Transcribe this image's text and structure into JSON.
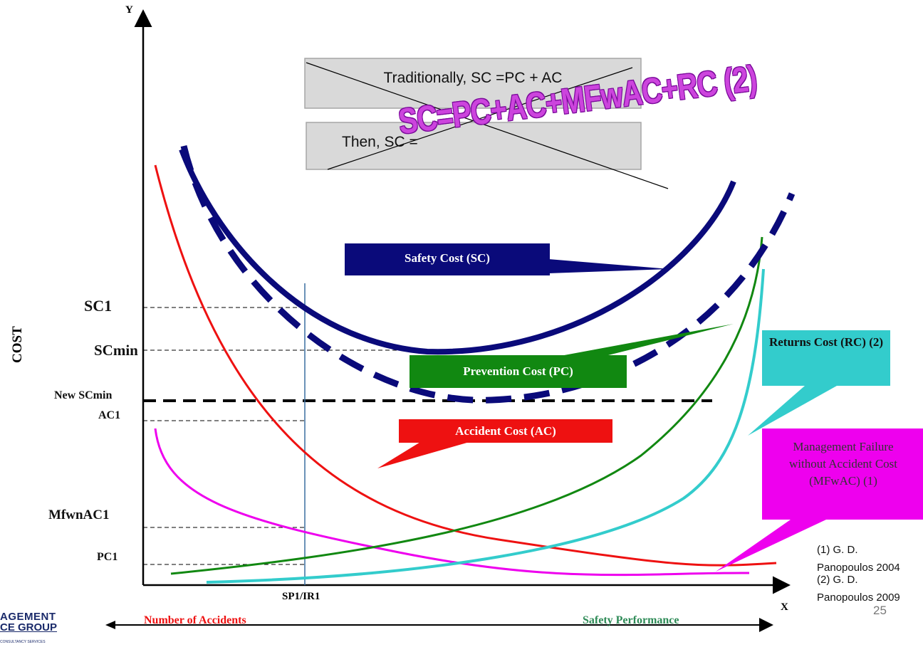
{
  "axes": {
    "x": "X",
    "y": "Y",
    "cost": "COST",
    "sp_ir": "SP1/IR1"
  },
  "levels": {
    "sc1": "SC1",
    "scmin": "SCmin",
    "new_scmin": "New SCmin",
    "ac1": "AC1",
    "mfwnac1": "MfwnAC1",
    "pc1": "PC1"
  },
  "boxes": {
    "traditional": "Traditionally, SC =PC + AC",
    "then": "Then, SC =",
    "big_formula": "SC=PC+AC+MFwAC+RC (2)"
  },
  "callouts": {
    "safety": "Safety Cost (SC)",
    "prevention": "Prevention Cost (PC)",
    "accident": "Accident Cost (AC)",
    "returns": "Returns Cost (RC) (2)",
    "management": "Management Failure without Accident Cost (MFwAC)  (1)"
  },
  "references": {
    "ref1": "(1) G. D. Panopoulos 2004",
    "ref2": "(2) G. D. Panopoulos 2009"
  },
  "bottom": {
    "accidents": "Number of Accidents",
    "performance": "Safety Performance",
    "page_number": "25",
    "logo_line1": "AGEMENT",
    "logo_line2": "CE GROUP",
    "logo_line3": "CONSULTANCY SERVICES"
  },
  "colors": {
    "safety": "#0a0a7a",
    "prevention": "#118811",
    "accident": "#ee1111",
    "returns": "#33cccc",
    "management": "#ee00ee",
    "performance": "#2e8b57"
  }
}
